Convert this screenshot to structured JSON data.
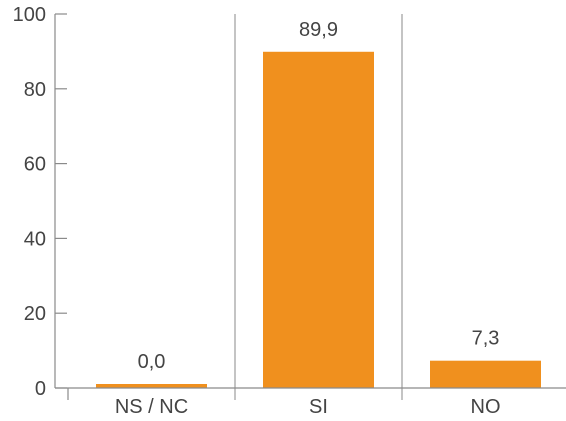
{
  "chart_data": {
    "type": "bar",
    "categories": [
      "NS / NC",
      "SI",
      "NO"
    ],
    "values": [
      0.0,
      89.9,
      7.3
    ],
    "data_labels": [
      "0,0",
      "89,9",
      "7,3"
    ],
    "y_ticks": [
      "0",
      "20",
      "40",
      "60",
      "80",
      "100"
    ],
    "ylim": [
      0,
      100
    ],
    "title": "",
    "xlabel": "",
    "ylabel": "",
    "bar_color": "#f0901e",
    "axis_color": "#8a8a8a",
    "grid": "vertical separators between categories",
    "legend": "none"
  }
}
